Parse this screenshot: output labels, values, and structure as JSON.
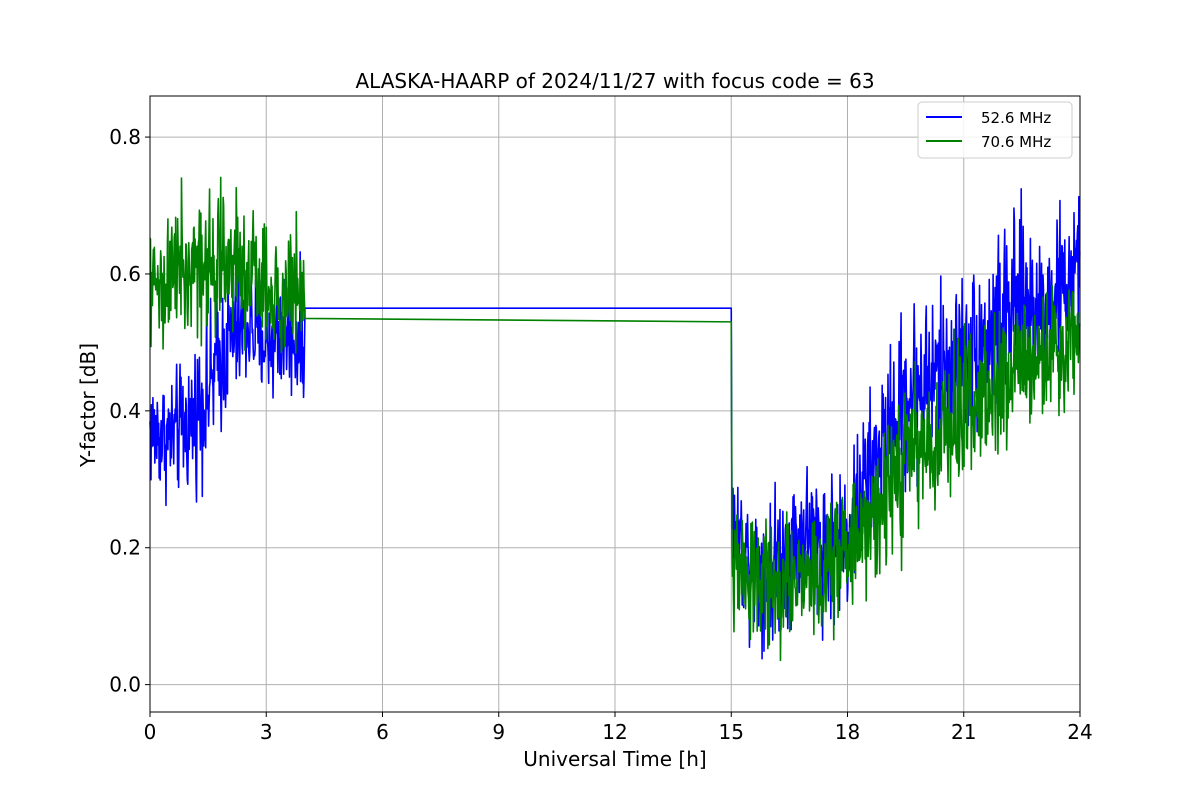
{
  "chart_data": {
    "type": "line",
    "title": "ALASKA-HAARP of 2024/11/27 with focus code = 63",
    "xlabel": "Universal Time [h]",
    "ylabel": "Y-factor [dB]",
    "xlim": [
      0,
      24
    ],
    "ylim": [
      -0.04,
      0.86
    ],
    "xticks": [
      0,
      3,
      6,
      9,
      12,
      15,
      18,
      21,
      24
    ],
    "xtick_labels": [
      "0",
      "3",
      "6",
      "9",
      "12",
      "15",
      "18",
      "21",
      "24"
    ],
    "yticks": [
      0.0,
      0.2,
      0.4,
      0.6,
      0.8
    ],
    "ytick_labels": [
      "0.0",
      "0.2",
      "0.4",
      "0.6",
      "0.8"
    ],
    "grid": true,
    "legend_position": "top-right",
    "series": [
      {
        "name": "52.6 MHz",
        "color": "#0000ff",
        "x": [
          0.0,
          0.5,
          1.0,
          1.5,
          2.0,
          2.5,
          3.0,
          3.5,
          3.98,
          4.0,
          15.0,
          15.02,
          15.5,
          16.0,
          16.5,
          17.0,
          17.5,
          18.0,
          18.5,
          19.0,
          19.5,
          20.0,
          20.5,
          21.0,
          21.5,
          22.0,
          22.5,
          23.0,
          23.5,
          24.0
        ],
        "y": [
          0.37,
          0.36,
          0.38,
          0.43,
          0.5,
          0.53,
          0.5,
          0.52,
          0.5,
          0.55,
          0.55,
          0.22,
          0.18,
          0.17,
          0.2,
          0.22,
          0.2,
          0.22,
          0.3,
          0.36,
          0.42,
          0.44,
          0.46,
          0.48,
          0.5,
          0.53,
          0.56,
          0.55,
          0.58,
          0.6
        ],
        "noise": [
          0.08,
          0.08,
          0.09,
          0.1,
          0.1,
          0.09,
          0.08,
          0.09,
          0.08,
          0.0,
          0.0,
          0.09,
          0.09,
          0.1,
          0.1,
          0.1,
          0.1,
          0.1,
          0.1,
          0.1,
          0.12,
          0.12,
          0.11,
          0.11,
          0.11,
          0.12,
          0.12,
          0.1,
          0.1,
          0.1
        ]
      },
      {
        "name": "70.6 MHz",
        "color": "#008000",
        "x": [
          0.0,
          0.5,
          1.0,
          1.5,
          2.0,
          2.5,
          3.0,
          3.5,
          3.98,
          4.0,
          15.0,
          15.02,
          15.5,
          16.0,
          16.5,
          17.0,
          17.5,
          18.0,
          18.5,
          19.0,
          19.5,
          20.0,
          20.5,
          21.0,
          21.5,
          22.0,
          22.5,
          23.0,
          23.5,
          24.0
        ],
        "y": [
          0.57,
          0.6,
          0.62,
          0.62,
          0.63,
          0.6,
          0.58,
          0.57,
          0.58,
          0.535,
          0.53,
          0.16,
          0.16,
          0.15,
          0.15,
          0.16,
          0.17,
          0.2,
          0.23,
          0.28,
          0.32,
          0.35,
          0.37,
          0.4,
          0.42,
          0.45,
          0.47,
          0.48,
          0.5,
          0.52
        ],
        "noise": [
          0.08,
          0.09,
          0.1,
          0.1,
          0.1,
          0.09,
          0.08,
          0.08,
          0.08,
          0.0,
          0.0,
          0.08,
          0.08,
          0.08,
          0.08,
          0.08,
          0.08,
          0.08,
          0.09,
          0.1,
          0.1,
          0.1,
          0.1,
          0.1,
          0.1,
          0.1,
          0.09,
          0.09,
          0.08,
          0.08
        ]
      }
    ]
  }
}
